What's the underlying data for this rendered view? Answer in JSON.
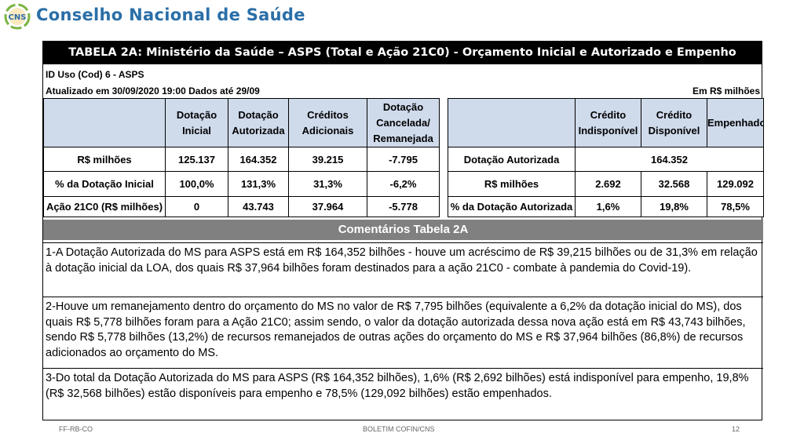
{
  "header": {
    "brand": "Conselho Nacional de Saúde",
    "logo_text": "CNS",
    "logo_colors": [
      "#2a6fa8",
      "#7cb342",
      "#f2a900"
    ]
  },
  "table": {
    "title": "TABELA 2A: Ministério da Saúde – ASPS (Total e Ação 21C0) - Orçamento Inicial e Autorizado e Empenho",
    "id_line": "ID Uso (Cod) 6 - ASPS",
    "updated": "Atualizado em 30/09/2020 19:00 Dados até 29/09",
    "units": "Em R$ milhões",
    "left": {
      "headers": [
        "Dotação Inicial",
        "Dotação Autorizada",
        "Créditos Adicionais",
        "Dotação Cancelada/ Remanejada"
      ],
      "rows": [
        {
          "label": "R$ milhões",
          "values": [
            "125.137",
            "164.352",
            "39.215",
            "-7.795"
          ]
        },
        {
          "label": "% da Dotação Inicial",
          "values": [
            "100,0%",
            "131,3%",
            "31,3%",
            "-6,2%"
          ]
        },
        {
          "label": "Ação 21C0 (R$ milhões)",
          "values": [
            "0",
            "43.743",
            "37.964",
            "-5.778"
          ]
        }
      ]
    },
    "right": {
      "headers": [
        "Crédito Indisponível",
        "Crédito Disponível",
        "Empenhado"
      ],
      "row1": {
        "label": "Dotação Autorizada",
        "value": "164.352"
      },
      "row2": {
        "label": "R$ milhões",
        "values": [
          "2.692",
          "32.568",
          "129.092"
        ]
      },
      "row3": {
        "label": "% da Dotação Autorizada",
        "values": [
          "1,6%",
          "19,8%",
          "78,5%"
        ]
      }
    }
  },
  "comments": {
    "heading": "Comentários Tabela 2A",
    "items": [
      "1-A Dotação Autorizada do MS para ASPS está em R$ 164,352 bilhões - houve um acréscimo de R$ 39,215 bilhões ou de 31,3% em relação à dotação inicial da LOA, dos quais R$ 37,964 bilhões foram destinados para a ação 21C0 - combate à pandemia do Covid-19).",
      "2-Houve um remanejamento dentro do orçamento do MS no valor de R$ 7,795 bilhões (equivalente a 6,2% da dotação inicial do MS), dos quais R$ 5,778 bilhões foram para a Ação 21C0; assim sendo, o valor da dotação autorizada dessa nova ação está em R$ 43,743 bilhões, sendo R$ 5,778 bilhões (13,2%) de recursos remanejados de outras ações do orçamento do MS e R$ 37,964 bilhões (86,8%) de recursos adicionados ao orçamento do MS.",
      "3-Do total da Dotação Autorizada do MS para ASPS (R$ 164,352 bilhões), 1,6% (R$ 2,692 bilhões) está indisponível para empenho, 19,8% (R$ 32,568 bilhões) estão disponíveis para empenho e 78,5% (129,092 bilhões) estão empenhados."
    ]
  },
  "footer": {
    "left": "FF-RB-CO",
    "center": "BOLETIM COFIN/CNS",
    "page": "12"
  }
}
